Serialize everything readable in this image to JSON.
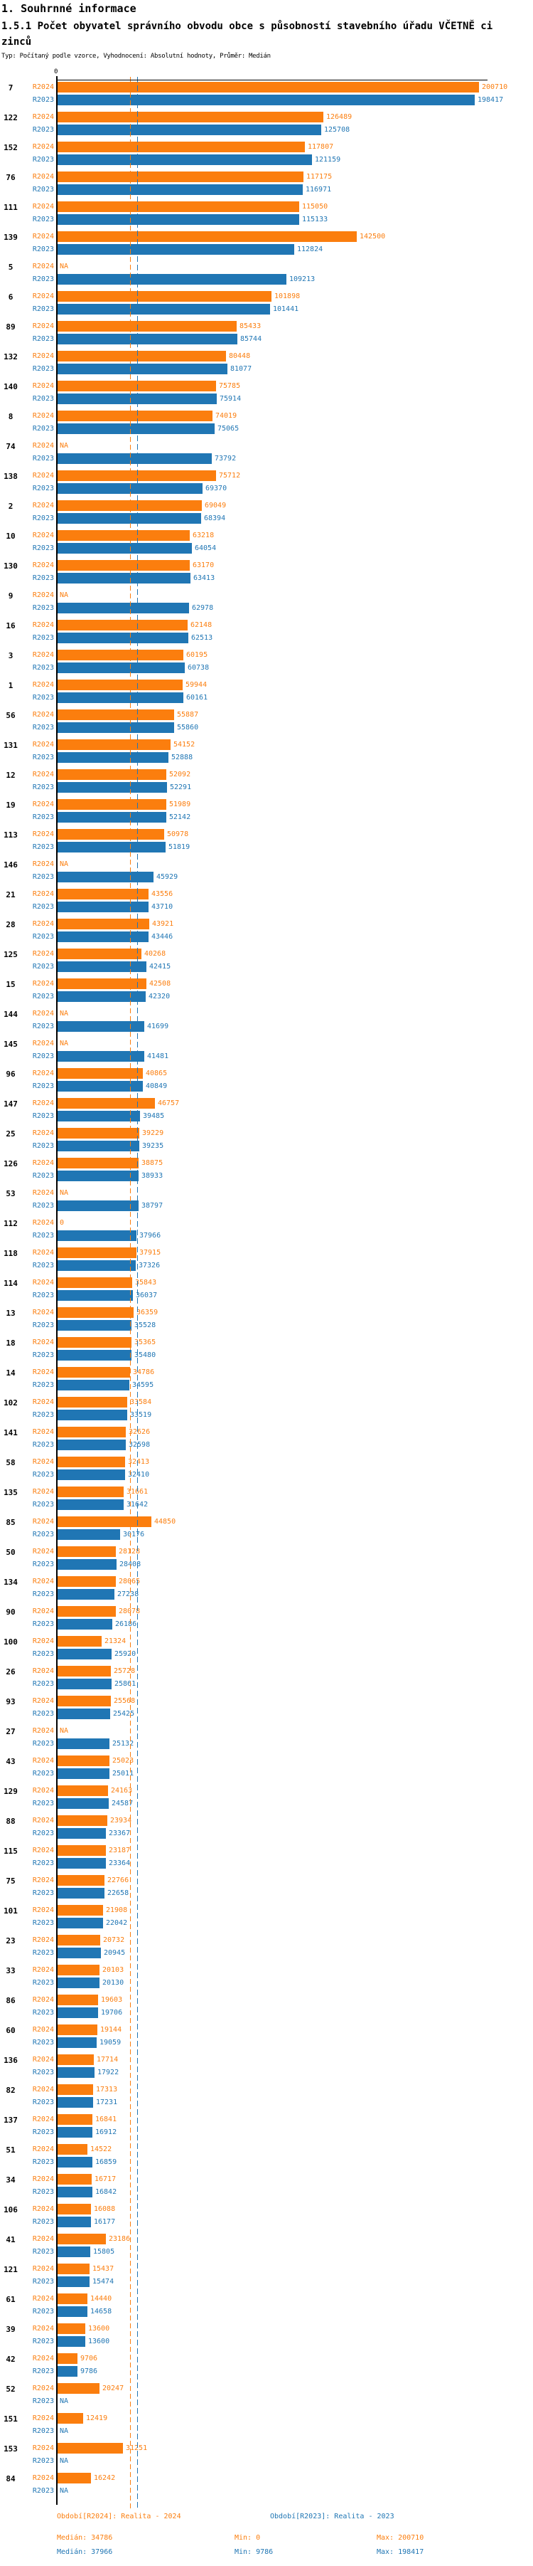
{
  "title1": "1. Souhrnné informace",
  "title2": "1.5.1 Počet obyvatel správního obvodu obce s působností stavebního úřadu VČETNĚ cizinců",
  "subtitle": "Typ: Počítaný podle vzorce, Vyhodnocení: Absolutní hodnoty, Průměr: Medián",
  "colors": {
    "r2024": "#fb7e0e",
    "r2023": "#2076b4"
  },
  "series_labels": {
    "r2024": "R2024",
    "r2023": "R2023"
  },
  "na_label": "NA",
  "axis": {
    "zero_label": "0"
  },
  "legend": {
    "r2024": {
      "period": "Období[R2024]: Realita - 2024",
      "median": "Medián: 34786",
      "min": "Min: 0",
      "max": "Max: 200710"
    },
    "r2023": {
      "period": "Období[R2023]: Realita - 2023",
      "median": "Medián: 37966",
      "min": "Min: 9786",
      "max": "Max: 198417"
    }
  },
  "chart_data": {
    "type": "bar",
    "orientation": "horizontal",
    "x_axis": {
      "min": 0,
      "max": 200710,
      "tick_labels": [
        "0"
      ]
    },
    "series": [
      {
        "name": "R2024",
        "title": "Období[R2024]: Realita - 2024",
        "color": "#fb7e0e",
        "median": 34786,
        "min": 0,
        "max": 200710
      },
      {
        "name": "R2023",
        "title": "Období[R2023]: Realita - 2023",
        "color": "#2076b4",
        "median": 37966,
        "min": 9786,
        "max": 198417
      }
    ],
    "groups": [
      {
        "id": "7",
        "r2024": 200710,
        "r2023": 198417
      },
      {
        "id": "122",
        "r2024": 126489,
        "r2023": 125708
      },
      {
        "id": "152",
        "r2024": 117807,
        "r2023": 121159
      },
      {
        "id": "76",
        "r2024": 117175,
        "r2023": 116971
      },
      {
        "id": "111",
        "r2024": 115050,
        "r2023": 115133
      },
      {
        "id": "139",
        "r2024": 142500,
        "r2023": 112824
      },
      {
        "id": "5",
        "r2024": "NA",
        "r2023": 109213
      },
      {
        "id": "6",
        "r2024": 101898,
        "r2023": 101441
      },
      {
        "id": "89",
        "r2024": 85433,
        "r2023": 85744
      },
      {
        "id": "132",
        "r2024": 80448,
        "r2023": 81077
      },
      {
        "id": "140",
        "r2024": 75785,
        "r2023": 75914
      },
      {
        "id": "8",
        "r2024": 74019,
        "r2023": 75065
      },
      {
        "id": "74",
        "r2024": "NA",
        "r2023": 73792
      },
      {
        "id": "138",
        "r2024": 75712,
        "r2023": 69370
      },
      {
        "id": "2",
        "r2024": 69049,
        "r2023": 68394
      },
      {
        "id": "10",
        "r2024": 63218,
        "r2023": 64054
      },
      {
        "id": "130",
        "r2024": 63170,
        "r2023": 63413
      },
      {
        "id": "9",
        "r2024": "NA",
        "r2023": 62978
      },
      {
        "id": "16",
        "r2024": 62148,
        "r2023": 62513
      },
      {
        "id": "3",
        "r2024": 60195,
        "r2023": 60738
      },
      {
        "id": "1",
        "r2024": 59944,
        "r2023": 60161
      },
      {
        "id": "56",
        "r2024": 55887,
        "r2023": 55860
      },
      {
        "id": "131",
        "r2024": 54152,
        "r2023": 52888
      },
      {
        "id": "12",
        "r2024": 52092,
        "r2023": 52291
      },
      {
        "id": "19",
        "r2024": 51989,
        "r2023": 52142
      },
      {
        "id": "113",
        "r2024": 50978,
        "r2023": 51819
      },
      {
        "id": "146",
        "r2024": "NA",
        "r2023": 45929
      },
      {
        "id": "21",
        "r2024": 43556,
        "r2023": 43710
      },
      {
        "id": "28",
        "r2024": 43921,
        "r2023": 43446
      },
      {
        "id": "125",
        "r2024": 40268,
        "r2023": 42415
      },
      {
        "id": "15",
        "r2024": 42508,
        "r2023": 42320
      },
      {
        "id": "144",
        "r2024": "NA",
        "r2023": 41699
      },
      {
        "id": "145",
        "r2024": "NA",
        "r2023": 41481
      },
      {
        "id": "96",
        "r2024": 40865,
        "r2023": 40849
      },
      {
        "id": "147",
        "r2024": 46757,
        "r2023": 39485
      },
      {
        "id": "25",
        "r2024": 39229,
        "r2023": 39235
      },
      {
        "id": "126",
        "r2024": 38875,
        "r2023": 38933
      },
      {
        "id": "53",
        "r2024": "NA",
        "r2023": 38797
      },
      {
        "id": "112",
        "r2024": 0,
        "r2023": 37966
      },
      {
        "id": "118",
        "r2024": 37915,
        "r2023": 37326
      },
      {
        "id": "114",
        "r2024": 35843,
        "r2023": 36037
      },
      {
        "id": "13",
        "r2024": 36359,
        "r2023": 35528
      },
      {
        "id": "18",
        "r2024": 35365,
        "r2023": 35480
      },
      {
        "id": "14",
        "r2024": 34786,
        "r2023": 34595
      },
      {
        "id": "102",
        "r2024": 33584,
        "r2023": 33519
      },
      {
        "id": "141",
        "r2024": 32626,
        "r2023": 32598
      },
      {
        "id": "58",
        "r2024": 32413,
        "r2023": 32410
      },
      {
        "id": "135",
        "r2024": 31661,
        "r2023": 31642
      },
      {
        "id": "85",
        "r2024": 44850,
        "r2023": 30176
      },
      {
        "id": "50",
        "r2024": 28128,
        "r2023": 28408
      },
      {
        "id": "134",
        "r2024": 28065,
        "r2023": 27238
      },
      {
        "id": "90",
        "r2024": 28078,
        "r2023": 26186
      },
      {
        "id": "100",
        "r2024": 21324,
        "r2023": 25920
      },
      {
        "id": "26",
        "r2024": 25728,
        "r2023": 25861
      },
      {
        "id": "93",
        "r2024": 25568,
        "r2023": 25425
      },
      {
        "id": "27",
        "r2024": "NA",
        "r2023": 25132
      },
      {
        "id": "43",
        "r2024": 25023,
        "r2023": 25011
      },
      {
        "id": "129",
        "r2024": 24163,
        "r2023": 24587
      },
      {
        "id": "88",
        "r2024": 23934,
        "r2023": 23367
      },
      {
        "id": "115",
        "r2024": 23187,
        "r2023": 23364
      },
      {
        "id": "75",
        "r2024": 22766,
        "r2023": 22658
      },
      {
        "id": "101",
        "r2024": 21908,
        "r2023": 22042
      },
      {
        "id": "23",
        "r2024": 20732,
        "r2023": 20945
      },
      {
        "id": "33",
        "r2024": 20103,
        "r2023": 20130
      },
      {
        "id": "86",
        "r2024": 19603,
        "r2023": 19706
      },
      {
        "id": "60",
        "r2024": 19144,
        "r2023": 19059
      },
      {
        "id": "136",
        "r2024": 17714,
        "r2023": 17922
      },
      {
        "id": "82",
        "r2024": 17313,
        "r2023": 17231
      },
      {
        "id": "137",
        "r2024": 16841,
        "r2023": 16912
      },
      {
        "id": "51",
        "r2024": 14522,
        "r2023": 16859
      },
      {
        "id": "34",
        "r2024": 16717,
        "r2023": 16842
      },
      {
        "id": "106",
        "r2024": 16088,
        "r2023": 16177
      },
      {
        "id": "41",
        "r2024": 23186,
        "r2023": 15805
      },
      {
        "id": "121",
        "r2024": 15437,
        "r2023": 15474
      },
      {
        "id": "61",
        "r2024": 14440,
        "r2023": 14658
      },
      {
        "id": "39",
        "r2024": 13600,
        "r2023": 13600
      },
      {
        "id": "42",
        "r2024": 9706,
        "r2023": 9786
      },
      {
        "id": "52",
        "r2024": 20247,
        "r2023": "NA"
      },
      {
        "id": "151",
        "r2024": 12419,
        "r2023": "NA"
      },
      {
        "id": "153",
        "r2024": 31251,
        "r2023": "NA"
      },
      {
        "id": "84",
        "r2024": 16242,
        "r2023": "NA"
      }
    ]
  }
}
